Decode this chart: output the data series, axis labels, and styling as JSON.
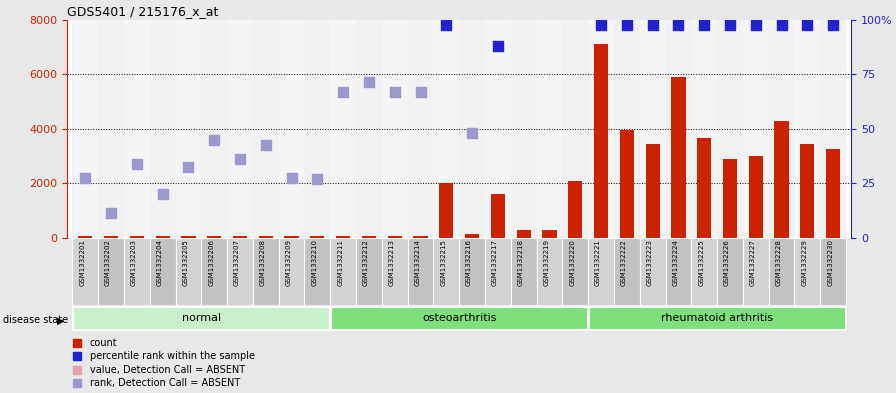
{
  "title": "GDS5401 / 215176_x_at",
  "samples": [
    "GSM1332201",
    "GSM1332202",
    "GSM1332203",
    "GSM1332204",
    "GSM1332205",
    "GSM1332206",
    "GSM1332207",
    "GSM1332208",
    "GSM1332209",
    "GSM1332210",
    "GSM1332211",
    "GSM1332212",
    "GSM1332213",
    "GSM1332214",
    "GSM1332215",
    "GSM1332216",
    "GSM1332217",
    "GSM1332218",
    "GSM1332219",
    "GSM1332220",
    "GSM1332221",
    "GSM1332222",
    "GSM1332223",
    "GSM1332224",
    "GSM1332225",
    "GSM1332226",
    "GSM1332227",
    "GSM1332228",
    "GSM1332229",
    "GSM1332230"
  ],
  "count_values": [
    80,
    80,
    80,
    80,
    80,
    80,
    80,
    80,
    80,
    80,
    80,
    80,
    80,
    80,
    2000,
    150,
    1600,
    300,
    300,
    2100,
    7100,
    3950,
    3450,
    5900,
    3650,
    2900,
    3000,
    4300,
    3450,
    3250
  ],
  "present_rank": [
    null,
    null,
    null,
    null,
    null,
    null,
    null,
    null,
    null,
    null,
    null,
    null,
    null,
    null,
    7800,
    null,
    7050,
    null,
    null,
    null,
    7800,
    7800,
    7800,
    7800,
    7800,
    7800,
    7800,
    7800,
    7800,
    7800
  ],
  "absent_rank": [
    2200,
    900,
    2700,
    1600,
    2600,
    3600,
    2900,
    3400,
    2200,
    2150,
    5350,
    5700,
    5350,
    5350,
    null,
    3850,
    null,
    null,
    null,
    null,
    null,
    null,
    null,
    null,
    null,
    null,
    null,
    null,
    null,
    null
  ],
  "absent_val_pink": [
    null,
    null,
    null,
    null,
    null,
    null,
    null,
    null,
    null,
    null,
    null,
    null,
    null,
    null,
    null,
    null,
    null,
    null,
    null,
    null,
    null,
    null,
    null,
    null,
    null,
    null,
    null,
    null,
    null,
    null
  ],
  "groups": [
    {
      "label": "normal",
      "start": 0,
      "end": 9,
      "color": "#c8f0c8"
    },
    {
      "label": "osteoarthritis",
      "start": 10,
      "end": 19,
      "color": "#7de07d"
    },
    {
      "label": "rheumatoid arthritis",
      "start": 20,
      "end": 29,
      "color": "#7de07d"
    }
  ],
  "ylim_left": [
    0,
    8000
  ],
  "yticks_left": [
    0,
    2000,
    4000,
    6000,
    8000
  ],
  "yticks_right": [
    0,
    25,
    50,
    75,
    100
  ],
  "left_axis_color": "#cc2200",
  "right_axis_color": "#2222cc",
  "bar_color": "#cc2200",
  "present_dot_color": "#2222cc",
  "absent_rank_color": "#9999cc",
  "absent_val_color": "#e8a0a8",
  "bg_color": "#e8e8e8",
  "col_color_even": "#d8d8d8",
  "col_color_odd": "#c8c8c8",
  "plot_bg": "#ffffff"
}
